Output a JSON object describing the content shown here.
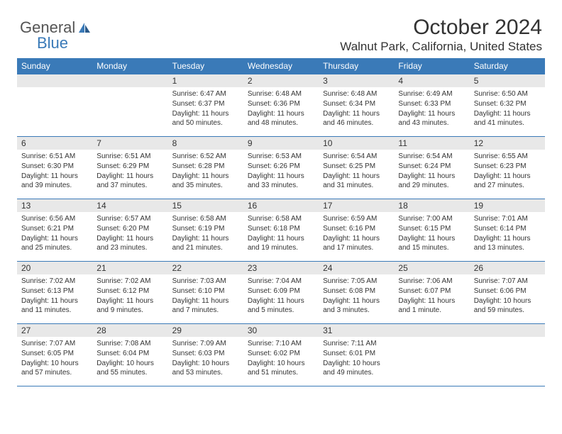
{
  "logo": {
    "text1": "General",
    "text2": "Blue"
  },
  "header": {
    "title": "October 2024",
    "location": "Walnut Park, California, United States"
  },
  "theme": {
    "header_bg": "#3a7ab8",
    "header_text": "#ffffff",
    "border_color": "#3a7ab8",
    "daynum_bg": "#e8e8e8",
    "body_text": "#333333",
    "title_fontsize": 30,
    "location_fontsize": 17,
    "weekday_fontsize": 12,
    "cell_fontsize": 10
  },
  "weekdays": [
    "Sunday",
    "Monday",
    "Tuesday",
    "Wednesday",
    "Thursday",
    "Friday",
    "Saturday"
  ],
  "weeks": [
    [
      null,
      null,
      {
        "n": "1",
        "sr": "Sunrise: 6:47 AM",
        "ss": "Sunset: 6:37 PM",
        "dl": "Daylight: 11 hours and 50 minutes."
      },
      {
        "n": "2",
        "sr": "Sunrise: 6:48 AM",
        "ss": "Sunset: 6:36 PM",
        "dl": "Daylight: 11 hours and 48 minutes."
      },
      {
        "n": "3",
        "sr": "Sunrise: 6:48 AM",
        "ss": "Sunset: 6:34 PM",
        "dl": "Daylight: 11 hours and 46 minutes."
      },
      {
        "n": "4",
        "sr": "Sunrise: 6:49 AM",
        "ss": "Sunset: 6:33 PM",
        "dl": "Daylight: 11 hours and 43 minutes."
      },
      {
        "n": "5",
        "sr": "Sunrise: 6:50 AM",
        "ss": "Sunset: 6:32 PM",
        "dl": "Daylight: 11 hours and 41 minutes."
      }
    ],
    [
      {
        "n": "6",
        "sr": "Sunrise: 6:51 AM",
        "ss": "Sunset: 6:30 PM",
        "dl": "Daylight: 11 hours and 39 minutes."
      },
      {
        "n": "7",
        "sr": "Sunrise: 6:51 AM",
        "ss": "Sunset: 6:29 PM",
        "dl": "Daylight: 11 hours and 37 minutes."
      },
      {
        "n": "8",
        "sr": "Sunrise: 6:52 AM",
        "ss": "Sunset: 6:28 PM",
        "dl": "Daylight: 11 hours and 35 minutes."
      },
      {
        "n": "9",
        "sr": "Sunrise: 6:53 AM",
        "ss": "Sunset: 6:26 PM",
        "dl": "Daylight: 11 hours and 33 minutes."
      },
      {
        "n": "10",
        "sr": "Sunrise: 6:54 AM",
        "ss": "Sunset: 6:25 PM",
        "dl": "Daylight: 11 hours and 31 minutes."
      },
      {
        "n": "11",
        "sr": "Sunrise: 6:54 AM",
        "ss": "Sunset: 6:24 PM",
        "dl": "Daylight: 11 hours and 29 minutes."
      },
      {
        "n": "12",
        "sr": "Sunrise: 6:55 AM",
        "ss": "Sunset: 6:23 PM",
        "dl": "Daylight: 11 hours and 27 minutes."
      }
    ],
    [
      {
        "n": "13",
        "sr": "Sunrise: 6:56 AM",
        "ss": "Sunset: 6:21 PM",
        "dl": "Daylight: 11 hours and 25 minutes."
      },
      {
        "n": "14",
        "sr": "Sunrise: 6:57 AM",
        "ss": "Sunset: 6:20 PM",
        "dl": "Daylight: 11 hours and 23 minutes."
      },
      {
        "n": "15",
        "sr": "Sunrise: 6:58 AM",
        "ss": "Sunset: 6:19 PM",
        "dl": "Daylight: 11 hours and 21 minutes."
      },
      {
        "n": "16",
        "sr": "Sunrise: 6:58 AM",
        "ss": "Sunset: 6:18 PM",
        "dl": "Daylight: 11 hours and 19 minutes."
      },
      {
        "n": "17",
        "sr": "Sunrise: 6:59 AM",
        "ss": "Sunset: 6:16 PM",
        "dl": "Daylight: 11 hours and 17 minutes."
      },
      {
        "n": "18",
        "sr": "Sunrise: 7:00 AM",
        "ss": "Sunset: 6:15 PM",
        "dl": "Daylight: 11 hours and 15 minutes."
      },
      {
        "n": "19",
        "sr": "Sunrise: 7:01 AM",
        "ss": "Sunset: 6:14 PM",
        "dl": "Daylight: 11 hours and 13 minutes."
      }
    ],
    [
      {
        "n": "20",
        "sr": "Sunrise: 7:02 AM",
        "ss": "Sunset: 6:13 PM",
        "dl": "Daylight: 11 hours and 11 minutes."
      },
      {
        "n": "21",
        "sr": "Sunrise: 7:02 AM",
        "ss": "Sunset: 6:12 PM",
        "dl": "Daylight: 11 hours and 9 minutes."
      },
      {
        "n": "22",
        "sr": "Sunrise: 7:03 AM",
        "ss": "Sunset: 6:10 PM",
        "dl": "Daylight: 11 hours and 7 minutes."
      },
      {
        "n": "23",
        "sr": "Sunrise: 7:04 AM",
        "ss": "Sunset: 6:09 PM",
        "dl": "Daylight: 11 hours and 5 minutes."
      },
      {
        "n": "24",
        "sr": "Sunrise: 7:05 AM",
        "ss": "Sunset: 6:08 PM",
        "dl": "Daylight: 11 hours and 3 minutes."
      },
      {
        "n": "25",
        "sr": "Sunrise: 7:06 AM",
        "ss": "Sunset: 6:07 PM",
        "dl": "Daylight: 11 hours and 1 minute."
      },
      {
        "n": "26",
        "sr": "Sunrise: 7:07 AM",
        "ss": "Sunset: 6:06 PM",
        "dl": "Daylight: 10 hours and 59 minutes."
      }
    ],
    [
      {
        "n": "27",
        "sr": "Sunrise: 7:07 AM",
        "ss": "Sunset: 6:05 PM",
        "dl": "Daylight: 10 hours and 57 minutes."
      },
      {
        "n": "28",
        "sr": "Sunrise: 7:08 AM",
        "ss": "Sunset: 6:04 PM",
        "dl": "Daylight: 10 hours and 55 minutes."
      },
      {
        "n": "29",
        "sr": "Sunrise: 7:09 AM",
        "ss": "Sunset: 6:03 PM",
        "dl": "Daylight: 10 hours and 53 minutes."
      },
      {
        "n": "30",
        "sr": "Sunrise: 7:10 AM",
        "ss": "Sunset: 6:02 PM",
        "dl": "Daylight: 10 hours and 51 minutes."
      },
      {
        "n": "31",
        "sr": "Sunrise: 7:11 AM",
        "ss": "Sunset: 6:01 PM",
        "dl": "Daylight: 10 hours and 49 minutes."
      },
      null,
      null
    ]
  ]
}
